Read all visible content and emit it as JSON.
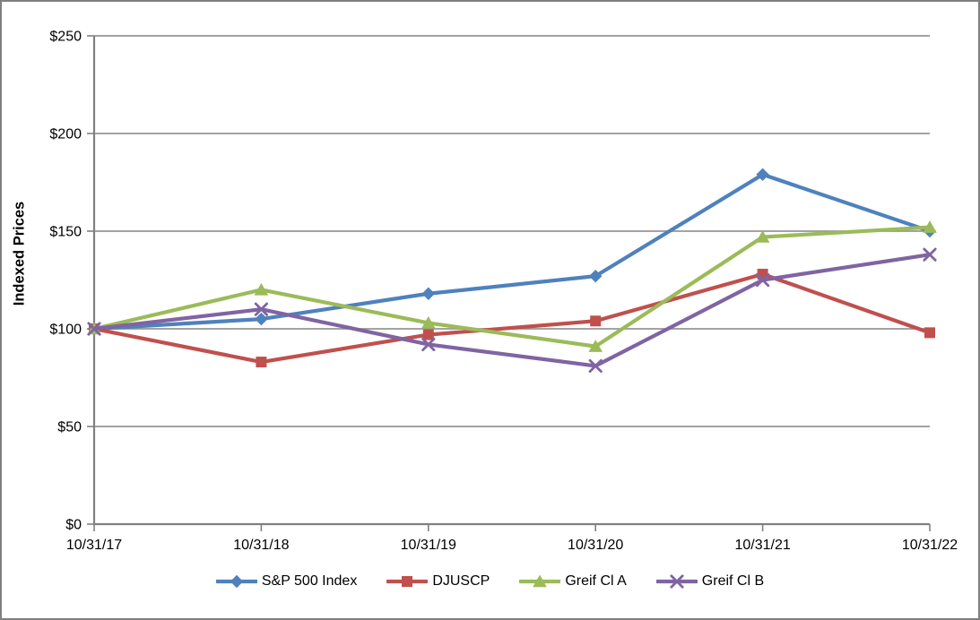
{
  "chart_data": {
    "type": "line",
    "title": "",
    "xlabel": "",
    "ylabel": "Indexed Prices",
    "categories": [
      "10/31/17",
      "10/31/18",
      "10/31/19",
      "10/31/20",
      "10/31/21",
      "10/31/22"
    ],
    "series": [
      {
        "name": "S&P 500 Index",
        "color": "#4F81BD",
        "marker": "diamond",
        "values": [
          100,
          105,
          118,
          127,
          179,
          150
        ]
      },
      {
        "name": "DJUSCP",
        "color": "#C0504D",
        "marker": "square",
        "values": [
          100,
          83,
          97,
          104,
          128,
          98
        ]
      },
      {
        "name": "Greif Cl A",
        "color": "#9BBB59",
        "marker": "triangle",
        "values": [
          100,
          120,
          103,
          91,
          147,
          152
        ]
      },
      {
        "name": "Greif Cl B",
        "color": "#8064A2",
        "marker": "x",
        "values": [
          100,
          110,
          92,
          81,
          125,
          138
        ]
      }
    ],
    "ylim": [
      0,
      250
    ],
    "y_tick_step": 50,
    "y_tick_prefix": "$",
    "y_tick_labels": [
      "$0",
      "$50",
      "$100",
      "$150",
      "$200",
      "$250"
    ],
    "grid": "horizontal",
    "gridline_color": "#969696",
    "axis_color": "#808080",
    "legend_position": "bottom",
    "background_color": "#FFFFFF",
    "frame_border_color": "#808080"
  }
}
